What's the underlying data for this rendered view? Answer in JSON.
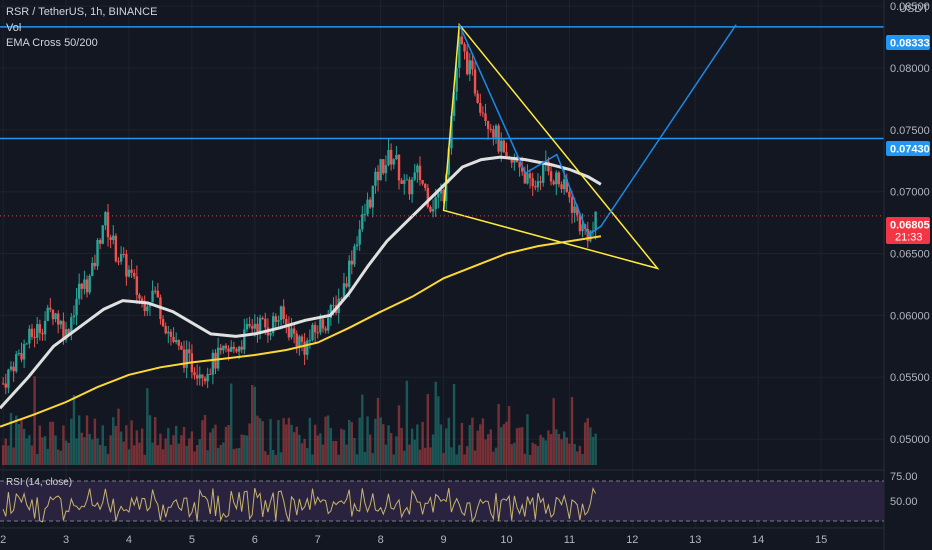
{
  "header": {
    "symbol_line": "RSR / TetherUS, 1h, BINANCE",
    "vol_label": "Vol",
    "ema_label": "EMA Cross 50/200"
  },
  "price_axis": {
    "currency": "USDT",
    "ticks": [
      "0.08500",
      "0.08000",
      "0.07500",
      "0.07000",
      "0.06500",
      "0.06000",
      "0.05500",
      "0.05000"
    ],
    "tick_values": [
      0.085,
      0.08,
      0.075,
      0.07,
      0.065,
      0.06,
      0.055,
      0.05
    ]
  },
  "time_axis": {
    "labels": [
      "2",
      "3",
      "4",
      "5",
      "6",
      "7",
      "8",
      "9",
      "10",
      "11",
      "12",
      "13",
      "14",
      "15"
    ]
  },
  "price_tags": {
    "resistance_high": "0.08333",
    "resistance_mid": "0.07430",
    "last_price": "0.06805",
    "countdown": "21:33"
  },
  "rsi": {
    "label": "RSI (14, close)",
    "upper_band": "75.00",
    "lower_band": "50.00"
  },
  "colors": {
    "background": "#131722",
    "up_candle": "#26a69a",
    "down_candle": "#ef5350",
    "horizontal_line": "#2196f3",
    "projection": "#1e88e5",
    "triangle": "#ffeb3b",
    "ema50": "#e0e0e0",
    "ema200": "#fdd835",
    "last_price_tag": "#f23645",
    "rsi_line": "#c7b36b",
    "rsi_fill": "#2a2340"
  },
  "chart_data": {
    "type": "candlestick",
    "x_unit": "day",
    "y_unit": "USDT",
    "ylim": [
      0.0475,
      0.0855
    ],
    "xlim": [
      1.95,
      16.0
    ],
    "hlines": [
      0.08333,
      0.0743
    ],
    "close_path": [
      [
        2.0,
        0.0545
      ],
      [
        2.2,
        0.0565
      ],
      [
        2.4,
        0.058
      ],
      [
        2.6,
        0.0592
      ],
      [
        2.8,
        0.0605
      ],
      [
        3.0,
        0.0585
      ],
      [
        3.2,
        0.062
      ],
      [
        3.4,
        0.063
      ],
      [
        3.6,
        0.068
      ],
      [
        3.8,
        0.065
      ],
      [
        4.0,
        0.0635
      ],
      [
        4.2,
        0.061
      ],
      [
        4.4,
        0.062
      ],
      [
        4.6,
        0.059
      ],
      [
        4.8,
        0.057
      ],
      [
        5.0,
        0.056
      ],
      [
        5.2,
        0.0555
      ],
      [
        5.4,
        0.0565
      ],
      [
        5.6,
        0.057
      ],
      [
        5.8,
        0.058
      ],
      [
        6.0,
        0.0595
      ],
      [
        6.2,
        0.059
      ],
      [
        6.4,
        0.06
      ],
      [
        6.6,
        0.0585
      ],
      [
        6.8,
        0.0575
      ],
      [
        7.0,
        0.059
      ],
      [
        7.2,
        0.06
      ],
      [
        7.4,
        0.062
      ],
      [
        7.6,
        0.066
      ],
      [
        7.8,
        0.069
      ],
      [
        8.0,
        0.072
      ],
      [
        8.2,
        0.073
      ],
      [
        8.4,
        0.07
      ],
      [
        8.6,
        0.0715
      ],
      [
        8.8,
        0.069
      ],
      [
        9.0,
        0.07
      ],
      [
        9.1,
        0.075
      ],
      [
        9.25,
        0.082
      ],
      [
        9.4,
        0.08
      ],
      [
        9.6,
        0.077
      ],
      [
        9.8,
        0.075
      ],
      [
        10.0,
        0.072
      ],
      [
        10.2,
        0.0725
      ],
      [
        10.4,
        0.07
      ],
      [
        10.6,
        0.072
      ],
      [
        10.8,
        0.071
      ],
      [
        11.0,
        0.0695
      ],
      [
        11.2,
        0.067
      ],
      [
        11.35,
        0.0665
      ],
      [
        11.45,
        0.068
      ]
    ],
    "ema50": [
      [
        1.95,
        0.0525
      ],
      [
        2.4,
        0.055
      ],
      [
        2.8,
        0.0575
      ],
      [
        3.2,
        0.059
      ],
      [
        3.6,
        0.0605
      ],
      [
        3.9,
        0.0612
      ],
      [
        4.3,
        0.061
      ],
      [
        4.7,
        0.0603
      ],
      [
        5.0,
        0.0594
      ],
      [
        5.3,
        0.0585
      ],
      [
        5.7,
        0.0583
      ],
      [
        6.0,
        0.0585
      ],
      [
        6.4,
        0.059
      ],
      [
        6.8,
        0.0596
      ],
      [
        7.2,
        0.06
      ],
      [
        7.5,
        0.0618
      ],
      [
        7.8,
        0.064
      ],
      [
        8.1,
        0.066
      ],
      [
        8.4,
        0.0675
      ],
      [
        8.7,
        0.069
      ],
      [
        9.0,
        0.0705
      ],
      [
        9.3,
        0.072
      ],
      [
        9.6,
        0.0726
      ],
      [
        9.9,
        0.0728
      ],
      [
        10.3,
        0.0726
      ],
      [
        10.7,
        0.0722
      ],
      [
        11.0,
        0.0718
      ],
      [
        11.3,
        0.0712
      ],
      [
        11.5,
        0.0706
      ]
    ],
    "ema200": [
      [
        1.95,
        0.051
      ],
      [
        2.5,
        0.052
      ],
      [
        3.0,
        0.053
      ],
      [
        3.5,
        0.0542
      ],
      [
        4.0,
        0.0552
      ],
      [
        4.5,
        0.0558
      ],
      [
        5.0,
        0.0562
      ],
      [
        5.5,
        0.0565
      ],
      [
        6.0,
        0.0568
      ],
      [
        6.5,
        0.0572
      ],
      [
        7.0,
        0.0578
      ],
      [
        7.5,
        0.059
      ],
      [
        8.0,
        0.0603
      ],
      [
        8.5,
        0.0615
      ],
      [
        9.0,
        0.063
      ],
      [
        9.5,
        0.064
      ],
      [
        10.0,
        0.065
      ],
      [
        10.5,
        0.0656
      ],
      [
        11.0,
        0.066
      ],
      [
        11.5,
        0.0664
      ]
    ],
    "triangle": [
      [
        9.25,
        0.0835
      ],
      [
        12.4,
        0.0638
      ],
      [
        9.0,
        0.0685
      ]
    ],
    "projection": [
      [
        9.25,
        0.0835
      ],
      [
        10.3,
        0.0715
      ],
      [
        10.8,
        0.073
      ],
      [
        11.3,
        0.0665
      ],
      [
        11.5,
        0.0672
      ],
      [
        13.65,
        0.0835
      ]
    ],
    "rsi_bands": [
      75,
      50
    ]
  }
}
